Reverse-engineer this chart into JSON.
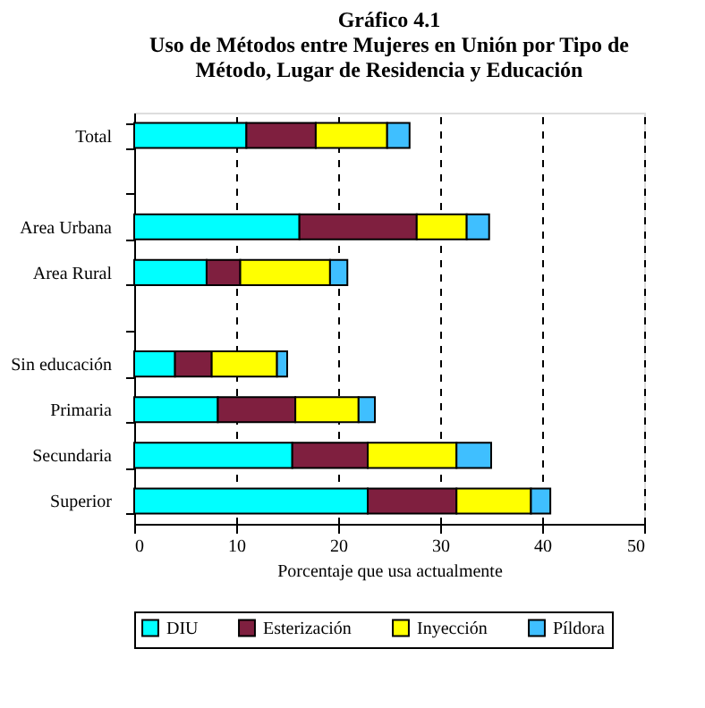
{
  "chart_data": {
    "type": "bar",
    "orientation": "horizontal",
    "stacked": true,
    "title": "Gráfico 4.1\nUso de Métodos entre Mujeres en  Unión por Tipo de\nMétodo, Lugar de Residencia y Educación",
    "xlabel": "Porcentaje que usa actualmente",
    "categories": [
      "Total",
      null,
      "Area Urbana",
      "Area Rural",
      null,
      "Sin educación",
      "Primaria",
      "Secundaria",
      "Superior"
    ],
    "series": [
      {
        "name": "DIU",
        "color": "#00ffff",
        "values": [
          11.0,
          null,
          16.2,
          7.1,
          null,
          4.0,
          8.2,
          15.5,
          22.9
        ]
      },
      {
        "name": "Esterización",
        "color": "#7f1f3f",
        "values": [
          6.8,
          null,
          11.5,
          3.3,
          null,
          3.6,
          7.6,
          7.4,
          8.7
        ]
      },
      {
        "name": "Inyección",
        "color": "#ffff00",
        "values": [
          7.0,
          null,
          4.9,
          8.8,
          null,
          6.4,
          6.2,
          8.7,
          7.3
        ]
      },
      {
        "name": "Píldora",
        "color": "#3fbfff",
        "values": [
          2.2,
          null,
          2.2,
          1.7,
          null,
          1.0,
          1.6,
          3.4,
          1.9
        ]
      }
    ],
    "xlim": [
      0,
      50
    ],
    "xticks": [
      0,
      10,
      20,
      30,
      40,
      50
    ],
    "grid": "x",
    "legend": "bottom"
  }
}
